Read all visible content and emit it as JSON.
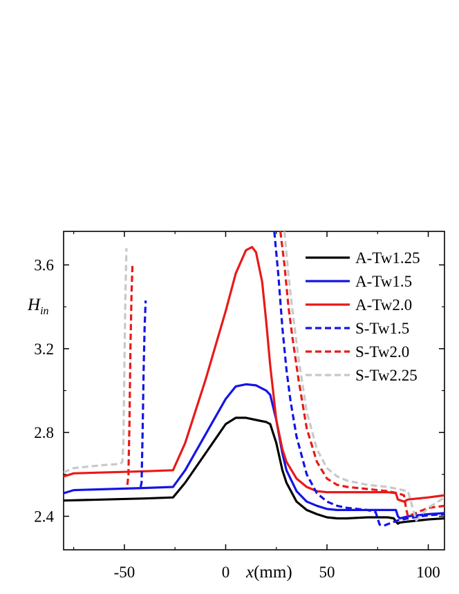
{
  "chart_data": {
    "type": "line",
    "xlabel_var": "x",
    "xlabel_unit": "(mm)",
    "ylabel_main": "H",
    "ylabel_sub": "in",
    "xlim": [
      -80,
      108
    ],
    "ylim": [
      2.24,
      3.76
    ],
    "x_ticks": [
      -50,
      0,
      50,
      100
    ],
    "x_tick_labels": [
      "-50",
      "0",
      "50",
      "100"
    ],
    "y_ticks": [
      2.4,
      2.8,
      3.2,
      3.6
    ],
    "y_tick_labels": [
      "2.4",
      "2.8",
      "3.2",
      "3.6"
    ],
    "grid": false,
    "legend_position": "top-right",
    "series": [
      {
        "name": "A-Tw1.25",
        "color": "#000000",
        "dash": "solid",
        "x": [
          -80,
          -40,
          -26,
          -20,
          -10,
          0,
          5,
          10,
          15,
          20,
          22,
          25,
          28,
          30,
          35,
          40,
          45,
          50,
          55,
          60,
          70,
          80,
          83,
          84,
          85,
          86,
          90,
          100,
          108
        ],
        "y": [
          2.475,
          2.485,
          2.49,
          2.56,
          2.7,
          2.84,
          2.87,
          2.87,
          2.86,
          2.85,
          2.84,
          2.75,
          2.62,
          2.56,
          2.47,
          2.43,
          2.41,
          2.395,
          2.39,
          2.39,
          2.395,
          2.395,
          2.39,
          2.375,
          2.365,
          2.37,
          2.375,
          2.385,
          2.39
        ]
      },
      {
        "name": "A-Tw1.5",
        "color": "#1414e6",
        "dash": "solid",
        "x": [
          -80,
          -75,
          -40,
          -26,
          -20,
          -10,
          0,
          5,
          10,
          15,
          20,
          22,
          25,
          28,
          30,
          35,
          40,
          45,
          50,
          55,
          60,
          70,
          84,
          85,
          86,
          90,
          100,
          108
        ],
        "y": [
          2.51,
          2.525,
          2.535,
          2.54,
          2.62,
          2.79,
          2.96,
          3.02,
          3.03,
          3.025,
          3.0,
          2.98,
          2.86,
          2.7,
          2.62,
          2.52,
          2.47,
          2.45,
          2.435,
          2.43,
          2.43,
          2.43,
          2.43,
          2.4,
          2.39,
          2.4,
          2.41,
          2.415
        ]
      },
      {
        "name": "A-Tw2.0",
        "color": "#e81919",
        "dash": "solid",
        "x": [
          -80,
          -75,
          -40,
          -26,
          -20,
          -10,
          0,
          5,
          10,
          13,
          15,
          18,
          20,
          22,
          25,
          28,
          30,
          35,
          40,
          45,
          50,
          55,
          60,
          70,
          80,
          84,
          85,
          88,
          90,
          100,
          108
        ],
        "y": [
          2.59,
          2.605,
          2.615,
          2.62,
          2.75,
          3.05,
          3.38,
          3.56,
          3.67,
          3.685,
          3.66,
          3.52,
          3.33,
          3.12,
          2.86,
          2.72,
          2.66,
          2.58,
          2.54,
          2.52,
          2.515,
          2.515,
          2.515,
          2.515,
          2.515,
          2.51,
          2.48,
          2.47,
          2.48,
          2.49,
          2.5
        ]
      },
      {
        "name": "S-Tw1.5",
        "color": "#1414e6",
        "dash": "dashed",
        "x": [
          -42,
          -41.5,
          -41,
          -40.5,
          -40,
          -39.5,
          null,
          24,
          26,
          28,
          30,
          32,
          35,
          40,
          45,
          50,
          55,
          60,
          70,
          74,
          76,
          78,
          82,
          85,
          90,
          100,
          108
        ],
        "y": [
          2.54,
          2.56,
          2.8,
          3.1,
          3.3,
          3.43,
          null,
          3.76,
          3.55,
          3.3,
          3.1,
          2.95,
          2.78,
          2.6,
          2.51,
          2.47,
          2.45,
          2.44,
          2.43,
          2.42,
          2.36,
          2.355,
          2.37,
          2.38,
          2.39,
          2.405,
          2.41
        ]
      },
      {
        "name": "S-Tw2.0",
        "color": "#e81919",
        "dash": "dashed",
        "x": [
          -48.5,
          -48,
          -47.5,
          -47,
          -46.5,
          -46,
          null,
          27,
          29,
          31,
          33,
          36,
          40,
          45,
          50,
          55,
          60,
          70,
          80,
          85,
          88,
          89,
          90,
          95,
          100,
          108
        ],
        "y": [
          2.55,
          2.6,
          2.85,
          3.2,
          3.45,
          3.6,
          null,
          3.76,
          3.6,
          3.4,
          3.25,
          3.05,
          2.82,
          2.66,
          2.58,
          2.55,
          2.54,
          2.53,
          2.52,
          2.51,
          2.5,
          2.44,
          2.4,
          2.42,
          2.44,
          2.45
        ]
      },
      {
        "name": "S-Tw2.25",
        "color": "#c8c8c8",
        "dash": "dashed",
        "x": [
          -80,
          -75,
          -60,
          -52,
          -51,
          -50.5,
          -50,
          -49.5,
          -49,
          null,
          29,
          31,
          33,
          36,
          40,
          45,
          50,
          55,
          60,
          70,
          80,
          90,
          92,
          94,
          96,
          100,
          108
        ],
        "y": [
          2.61,
          2.63,
          2.645,
          2.65,
          2.66,
          2.75,
          3.1,
          3.45,
          3.68,
          null,
          3.76,
          3.55,
          3.38,
          3.15,
          2.9,
          2.72,
          2.63,
          2.59,
          2.57,
          2.55,
          2.54,
          2.52,
          2.45,
          2.38,
          2.4,
          2.44,
          2.49
        ]
      }
    ]
  }
}
